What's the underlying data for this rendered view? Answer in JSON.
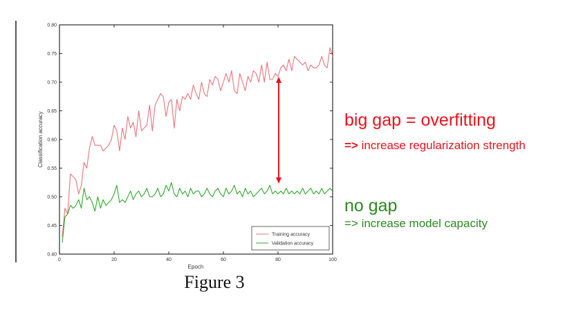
{
  "caption": "Figure 3",
  "colors": {
    "training": "#e8737a",
    "validation": "#2fa52f",
    "gap_arrow": "#e8121c",
    "overfit_text": "#e8121c",
    "nogap_text": "#2a8a1f"
  },
  "annotations": {
    "overfit_title": "big gap = overfitting",
    "overfit_arrow": "=>",
    "overfit_advice": "increase regularization strength",
    "nogap_title": "no gap",
    "nogap_advice": "=> increase model capacity"
  },
  "chart_data": {
    "type": "line",
    "xlabel": "Epoch",
    "ylabel": "Classification accuracy",
    "xlim": [
      0,
      100
    ],
    "ylim": [
      0.4,
      0.8
    ],
    "xticks": [
      0,
      20,
      40,
      60,
      80,
      100
    ],
    "yticks": [
      0.4,
      0.45,
      0.5,
      0.55,
      0.6,
      0.65,
      0.7,
      0.75,
      0.8
    ],
    "legend_position": "bottom-right",
    "x": [
      1,
      2,
      3,
      4,
      5,
      6,
      7,
      8,
      9,
      10,
      11,
      12,
      13,
      14,
      15,
      16,
      17,
      18,
      19,
      20,
      21,
      22,
      23,
      24,
      25,
      26,
      27,
      28,
      29,
      30,
      31,
      32,
      33,
      34,
      35,
      36,
      37,
      38,
      39,
      40,
      41,
      42,
      43,
      44,
      45,
      46,
      47,
      48,
      49,
      50,
      51,
      52,
      53,
      54,
      55,
      56,
      57,
      58,
      59,
      60,
      61,
      62,
      63,
      64,
      65,
      66,
      67,
      68,
      69,
      70,
      71,
      72,
      73,
      74,
      75,
      76,
      77,
      78,
      79,
      80,
      81,
      82,
      83,
      84,
      85,
      86,
      87,
      88,
      89,
      90,
      91,
      92,
      93,
      94,
      95,
      96,
      97,
      98,
      99,
      100
    ],
    "series": [
      {
        "name": "Training accuracy",
        "values": [
          0.43,
          0.48,
          0.47,
          0.54,
          0.535,
          0.53,
          0.505,
          0.52,
          0.56,
          0.55,
          0.585,
          0.605,
          0.59,
          0.59,
          0.59,
          0.58,
          0.585,
          0.59,
          0.6,
          0.625,
          0.615,
          0.58,
          0.62,
          0.6,
          0.64,
          0.62,
          0.63,
          0.605,
          0.65,
          0.615,
          0.62,
          0.625,
          0.66,
          0.615,
          0.66,
          0.67,
          0.68,
          0.675,
          0.64,
          0.665,
          0.67,
          0.62,
          0.67,
          0.65,
          0.675,
          0.67,
          0.68,
          0.67,
          0.695,
          0.68,
          0.67,
          0.7,
          0.68,
          0.675,
          0.705,
          0.695,
          0.71,
          0.705,
          0.685,
          0.7,
          0.715,
          0.7,
          0.72,
          0.685,
          0.68,
          0.715,
          0.7,
          0.685,
          0.71,
          0.7,
          0.72,
          0.715,
          0.7,
          0.73,
          0.7,
          0.735,
          0.705,
          0.705,
          0.715,
          0.71,
          0.725,
          0.73,
          0.72,
          0.74,
          0.72,
          0.745,
          0.74,
          0.735,
          0.73,
          0.735,
          0.72,
          0.73,
          0.725,
          0.725,
          0.73,
          0.745,
          0.73,
          0.725,
          0.76,
          0.745
        ]
      },
      {
        "name": "Validation accuracy",
        "values": [
          0.42,
          0.465,
          0.47,
          0.485,
          0.48,
          0.485,
          0.495,
          0.48,
          0.515,
          0.495,
          0.5,
          0.49,
          0.475,
          0.5,
          0.48,
          0.495,
          0.485,
          0.49,
          0.495,
          0.505,
          0.52,
          0.49,
          0.495,
          0.49,
          0.5,
          0.51,
          0.495,
          0.505,
          0.51,
          0.5,
          0.505,
          0.515,
          0.5,
          0.5,
          0.505,
          0.515,
          0.5,
          0.505,
          0.52,
          0.51,
          0.525,
          0.505,
          0.5,
          0.515,
          0.505,
          0.51,
          0.5,
          0.515,
          0.505,
          0.51,
          0.51,
          0.5,
          0.505,
          0.515,
          0.505,
          0.5,
          0.51,
          0.515,
          0.505,
          0.5,
          0.515,
          0.505,
          0.51,
          0.52,
          0.505,
          0.51,
          0.5,
          0.515,
          0.505,
          0.51,
          0.5,
          0.505,
          0.51,
          0.515,
          0.505,
          0.51,
          0.52,
          0.505,
          0.51,
          0.505,
          0.51,
          0.505,
          0.515,
          0.505,
          0.51,
          0.505,
          0.51,
          0.505,
          0.515,
          0.505,
          0.51,
          0.515,
          0.505,
          0.51,
          0.505,
          0.515,
          0.505,
          0.51,
          0.515,
          0.51
        ]
      }
    ]
  }
}
